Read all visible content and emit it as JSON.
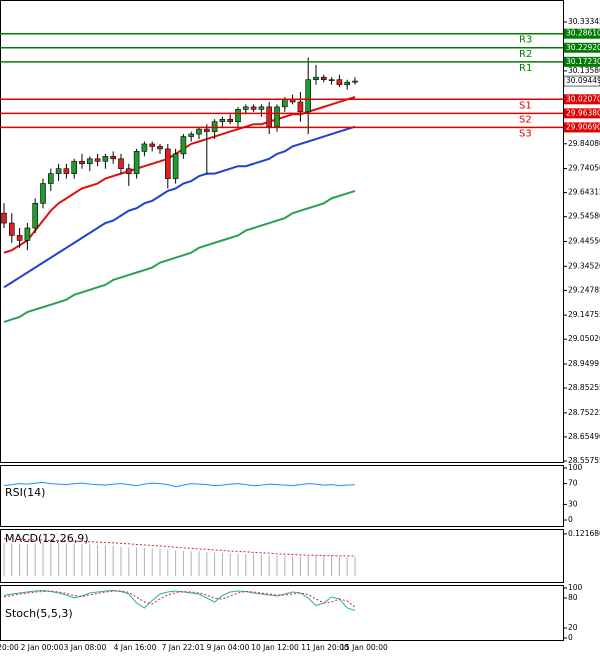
{
  "chart_data": [
    {
      "type": "candlestick",
      "open": [
        29.56,
        29.52,
        29.47,
        29.45,
        29.5,
        29.6,
        29.68,
        29.72,
        29.74,
        29.72,
        29.77,
        29.76,
        29.78,
        29.77,
        29.79,
        29.78,
        29.74,
        29.72,
        29.81,
        29.84,
        29.83,
        29.82,
        29.7,
        29.8,
        29.87,
        29.88,
        29.9,
        29.89,
        29.93,
        29.94,
        29.93,
        29.98,
        29.99,
        29.98,
        29.99,
        29.91,
        29.99,
        30.02,
        30.01,
        29.97,
        30.1,
        30.11,
        30.1,
        30.1,
        30.08,
        30.09
      ],
      "high": [
        29.6,
        29.56,
        29.5,
        29.52,
        29.62,
        29.7,
        29.74,
        29.76,
        29.76,
        29.78,
        29.8,
        29.79,
        29.8,
        29.8,
        29.81,
        29.8,
        29.76,
        29.82,
        29.85,
        29.85,
        29.84,
        29.84,
        29.82,
        29.88,
        29.89,
        29.91,
        29.92,
        29.94,
        29.95,
        29.96,
        29.99,
        30.0,
        30.0,
        30.0,
        30.01,
        30.0,
        30.03,
        30.04,
        30.05,
        30.19,
        30.16,
        30.12,
        30.11,
        30.12,
        30.1,
        30.11
      ],
      "low": [
        29.5,
        29.44,
        29.42,
        29.41,
        29.48,
        29.58,
        29.65,
        29.69,
        29.7,
        29.7,
        29.74,
        29.73,
        29.75,
        29.74,
        29.76,
        29.72,
        29.67,
        29.7,
        29.79,
        29.81,
        29.8,
        29.66,
        29.68,
        29.78,
        29.85,
        29.86,
        29.72,
        29.86,
        29.91,
        29.92,
        29.91,
        29.96,
        29.97,
        29.95,
        29.88,
        29.89,
        29.97,
        30.0,
        29.93,
        29.88,
        30.08,
        30.09,
        30.08,
        30.07,
        30.06,
        30.08
      ],
      "close": [
        29.52,
        29.47,
        29.45,
        29.5,
        29.6,
        29.68,
        29.72,
        29.74,
        29.72,
        29.77,
        29.76,
        29.78,
        29.77,
        29.79,
        29.78,
        29.74,
        29.72,
        29.81,
        29.84,
        29.83,
        29.82,
        29.7,
        29.8,
        29.87,
        29.88,
        29.9,
        29.89,
        29.93,
        29.94,
        29.93,
        29.98,
        29.99,
        29.98,
        29.99,
        29.91,
        29.99,
        30.02,
        30.01,
        29.97,
        30.1,
        30.11,
        30.1,
        30.1,
        30.08,
        30.09,
        30.09449
      ],
      "up_color": "#1f9a2e",
      "down_color": "#e02020",
      "overlays": [
        {
          "color": "#e01010",
          "values": [
            29.4,
            29.41,
            29.43,
            29.45,
            29.49,
            29.53,
            29.57,
            29.6,
            29.62,
            29.64,
            29.66,
            29.67,
            29.68,
            29.7,
            29.71,
            29.72,
            29.73,
            29.74,
            29.75,
            29.76,
            29.77,
            29.78,
            29.8,
            29.82,
            29.84,
            29.85,
            29.86,
            29.87,
            29.88,
            29.89,
            29.9,
            29.91,
            29.92,
            29.92,
            29.93,
            29.94,
            29.95,
            29.96,
            29.96,
            29.97,
            29.98,
            29.99,
            30.0,
            30.01,
            30.02,
            30.03
          ]
        },
        {
          "color": "#2040d0",
          "values": [
            29.26,
            29.28,
            29.3,
            29.32,
            29.34,
            29.36,
            29.38,
            29.4,
            29.42,
            29.44,
            29.46,
            29.48,
            29.5,
            29.52,
            29.53,
            29.55,
            29.57,
            29.58,
            29.6,
            29.61,
            29.63,
            29.65,
            29.66,
            29.68,
            29.69,
            29.71,
            29.72,
            29.72,
            29.73,
            29.74,
            29.75,
            29.75,
            29.76,
            29.77,
            29.78,
            29.8,
            29.81,
            29.83,
            29.84,
            29.85,
            29.86,
            29.87,
            29.88,
            29.89,
            29.9,
            29.91
          ]
        },
        {
          "color": "#2aa050",
          "values": [
            29.12,
            29.13,
            29.14,
            29.16,
            29.17,
            29.18,
            29.19,
            29.2,
            29.21,
            29.23,
            29.24,
            29.25,
            29.26,
            29.27,
            29.29,
            29.3,
            29.31,
            29.32,
            29.33,
            29.34,
            29.36,
            29.37,
            29.38,
            29.39,
            29.4,
            29.42,
            29.43,
            29.44,
            29.45,
            29.46,
            29.47,
            29.49,
            29.5,
            29.51,
            29.52,
            29.53,
            29.54,
            29.56,
            29.57,
            29.58,
            29.59,
            29.6,
            29.62,
            29.63,
            29.64,
            29.65
          ]
        }
      ],
      "levels": [
        {
          "name": "R3",
          "price": {
            "value": 30.2861,
            "label": "30.28610"
          },
          "color": "#007a00"
        },
        {
          "name": "R2",
          "price": {
            "value": 30.2292,
            "label": "30.22920"
          },
          "color": "#007a00"
        },
        {
          "name": "R1",
          "price": {
            "value": 30.1723,
            "label": "30.17230"
          },
          "color": "#007a00"
        },
        {
          "name": "S1",
          "price": {
            "value": 30.0207,
            "label": "30.02070"
          },
          "color": "#e00000"
        },
        {
          "name": "S2",
          "price": {
            "value": 29.9638,
            "label": "29.96380"
          },
          "color": "#e00000"
        },
        {
          "name": "S3",
          "price": {
            "value": 29.9069,
            "label": "29.90690"
          },
          "color": "#e00000"
        }
      ],
      "last_price": 30.09449,
      "ylim": [
        28.5494,
        30.4224
      ],
      "yticks": [
        30.33345,
        {
          "value": 30.1358,
          "label": "30.13580"
        },
        {
          "value": 29.8408,
          "label": "29.84080"
        },
        {
          "value": 29.7405,
          "label": "29.74050"
        },
        29.64315,
        {
          "value": 29.5458,
          "label": "29.54580"
        },
        {
          "value": 29.4455,
          "label": "29.44550"
        },
        {
          "value": 29.3452,
          "label": "29.34520"
        },
        29.24785,
        29.14755,
        {
          "value": 29.0502,
          "label": "29.05020"
        },
        28.9499,
        28.85255,
        28.75225,
        {
          "value": 28.6549,
          "label": "28.65490"
        },
        28.55755
      ],
      "time_labels": [
        "20:00",
        "2 Jan 00:00",
        "3 Jan 08:00",
        "4 Jan 16:00",
        "7 Jan 22:01",
        "9 Jan 04:00",
        "10 Jan 12:00",
        "11 Jan 20:00",
        "15 Jan 00:00"
      ]
    },
    {
      "type": "line",
      "title": "RSI(14)",
      "color": "#1e8fff",
      "values": [
        66,
        68,
        70,
        69,
        71,
        72,
        70,
        69,
        68,
        70,
        71,
        69,
        68,
        67,
        69,
        70,
        68,
        66,
        69,
        71,
        70,
        68,
        64,
        67,
        70,
        69,
        68,
        66,
        67,
        69,
        70,
        68,
        66,
        67,
        69,
        68,
        67,
        66,
        68,
        70,
        69,
        67,
        68,
        66,
        67,
        68
      ],
      "ylim": [
        0,
        100
      ],
      "yticks": [
        100,
        70,
        30,
        0
      ]
    },
    {
      "type": "macd",
      "title": "MACD(12,26,9)",
      "color": "#b0b0b0",
      "signal_color": "#e02020",
      "values": [
        0.095,
        0.094,
        0.093,
        0.092,
        0.094,
        0.095,
        0.096,
        0.095,
        0.094,
        0.093,
        0.092,
        0.091,
        0.09,
        0.088,
        0.087,
        0.085,
        0.083,
        0.082,
        0.081,
        0.08,
        0.079,
        0.076,
        0.074,
        0.073,
        0.072,
        0.071,
        0.069,
        0.068,
        0.067,
        0.066,
        0.065,
        0.064,
        0.063,
        0.062,
        0.06,
        0.059,
        0.058,
        0.057,
        0.056,
        0.057,
        0.058,
        0.058,
        0.057,
        0.056,
        0.056,
        0.055
      ],
      "signal": [
        0.108,
        0.107,
        0.106,
        0.105,
        0.104,
        0.104,
        0.103,
        0.103,
        0.102,
        0.101,
        0.1,
        0.099,
        0.098,
        0.097,
        0.096,
        0.094,
        0.093,
        0.091,
        0.09,
        0.088,
        0.087,
        0.085,
        0.083,
        0.081,
        0.08,
        0.078,
        0.077,
        0.075,
        0.074,
        0.072,
        0.071,
        0.07,
        0.068,
        0.067,
        0.066,
        0.064,
        0.063,
        0.062,
        0.061,
        0.06,
        0.06,
        0.059,
        0.059,
        0.058,
        0.058,
        0.058
      ],
      "ylim": [
        0,
        0.13
      ],
      "yticks": [
        0.121686
      ]
    },
    {
      "type": "stoch",
      "title": "Stoch(5,5,3)",
      "color": "#20b2aa",
      "signal_color": "#e02020",
      "values": [
        85,
        88,
        90,
        92,
        94,
        95,
        93,
        90,
        86,
        80,
        84,
        90,
        92,
        94,
        95,
        93,
        88,
        70,
        60,
        75,
        88,
        92,
        94,
        92,
        90,
        88,
        80,
        72,
        85,
        92,
        94,
        93,
        90,
        88,
        86,
        84,
        88,
        92,
        90,
        80,
        65,
        70,
        82,
        78,
        60,
        55
      ],
      "signal": [
        82,
        85,
        88,
        90,
        92,
        93,
        94,
        92,
        89,
        85,
        83,
        86,
        89,
        92,
        94,
        94,
        91,
        82,
        72,
        68,
        78,
        86,
        91,
        93,
        92,
        90,
        86,
        79,
        78,
        84,
        90,
        93,
        92,
        90,
        88,
        86,
        86,
        88,
        90,
        87,
        78,
        70,
        72,
        78,
        74,
        62
      ],
      "ylim": [
        0,
        100
      ],
      "yticks": [
        100,
        80,
        20,
        0
      ]
    }
  ]
}
